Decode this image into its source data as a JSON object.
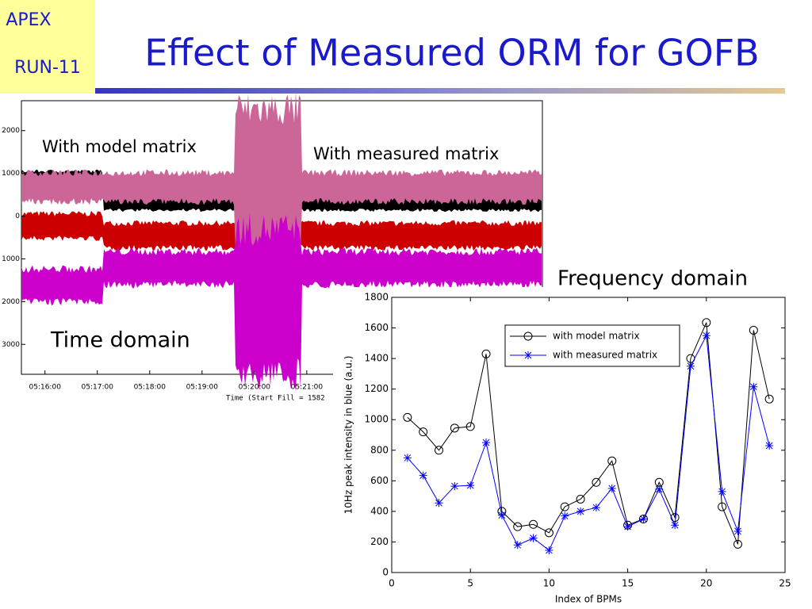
{
  "header": {
    "badge_top": "APEX",
    "badge_bottom": "RUN-11",
    "title": "Effect of Measured ORM for GOFB"
  },
  "chart_data": [
    {
      "type": "trace",
      "title": "Time domain",
      "annotations": [
        "With model matrix",
        "With measured matrix"
      ],
      "xlabel": "Time (Start Fill = 1582",
      "xlim": [
        15.55,
        25.5
      ],
      "xticks": [
        {
          "value": 16,
          "label": "05:16:00"
        },
        {
          "value": 17,
          "label": "05:17:00"
        },
        {
          "value": 18,
          "label": "05:18:00"
        },
        {
          "value": 19,
          "label": "05:19:00"
        },
        {
          "value": 20,
          "label": "05:20:00"
        },
        {
          "value": 21,
          "label": "05:21:00"
        }
      ],
      "ylim": [
        -3700,
        2700
      ],
      "yticks": [
        {
          "value": 2000,
          "label": "2000"
        },
        {
          "value": 1000,
          "label": "1000"
        },
        0,
        {
          "value": -1000,
          "label": "1000"
        },
        {
          "value": -2000,
          "label": "2000"
        },
        {
          "value": -3000,
          "label": "3000"
        }
      ]
    },
    {
      "type": "line",
      "title": "Frequency domain",
      "xlabel": "Index of BPMs",
      "ylabel": "10Hz peak intensity in blue (a.u.)",
      "x": [
        1,
        2,
        3,
        4,
        5,
        6,
        7,
        8,
        9,
        10,
        11,
        12,
        13,
        14,
        15,
        16,
        17,
        18,
        19,
        20,
        21,
        22,
        23,
        24
      ],
      "series": [
        {
          "name": "with model matrix",
          "color": "#000000",
          "marker": "circle",
          "values": [
            1015,
            920,
            800,
            945,
            955,
            1430,
            400,
            300,
            315,
            260,
            430,
            480,
            590,
            730,
            310,
            350,
            590,
            360,
            1400,
            1635,
            430,
            185,
            1585,
            1135
          ]
        },
        {
          "name": "with measured matrix",
          "color": "#0000ff",
          "marker": "star",
          "values": [
            750,
            635,
            455,
            565,
            570,
            850,
            375,
            180,
            225,
            145,
            370,
            400,
            425,
            550,
            300,
            350,
            545,
            310,
            1350,
            1550,
            530,
            270,
            1215,
            830
          ]
        }
      ],
      "xlim": [
        0,
        25
      ],
      "xticks": [
        0,
        5,
        10,
        15,
        20,
        25
      ],
      "ylim": [
        0,
        1800
      ],
      "yticks": [
        0,
        200,
        400,
        600,
        800,
        1000,
        1200,
        1400,
        1600,
        1800
      ],
      "legend": "upper-right"
    }
  ]
}
